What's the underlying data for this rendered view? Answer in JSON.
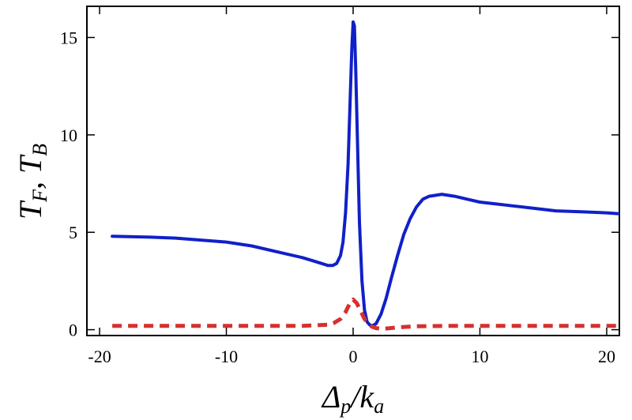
{
  "chart_data": {
    "type": "line",
    "title": "",
    "xlabel": "Δp/ka",
    "ylabel": "TF, TB",
    "xlim": [
      -21,
      21
    ],
    "ylim": [
      -0.3,
      16.6
    ],
    "grid": false,
    "legend": "none",
    "xticks": [
      {
        "value": -20,
        "label": "-20"
      },
      {
        "value": -10,
        "label": "-10"
      },
      {
        "value": 0,
        "label": "0"
      },
      {
        "value": 10,
        "label": "10"
      },
      {
        "value": 20,
        "label": "20"
      }
    ],
    "yticks": [
      {
        "value": 0,
        "label": "0"
      },
      {
        "value": 5,
        "label": "5"
      },
      {
        "value": 10,
        "label": "10"
      },
      {
        "value": 15,
        "label": "15"
      }
    ],
    "series": [
      {
        "style": "solid",
        "color": "#1020c8",
        "x": [
          -19,
          -16,
          -14,
          -12,
          -10,
          -8,
          -6,
          -4,
          -3,
          -2,
          -1.6,
          -1.3,
          -1,
          -0.8,
          -0.6,
          -0.4,
          -0.25,
          -0.1,
          0,
          0.1,
          0.2,
          0.35,
          0.5,
          0.7,
          0.9,
          1.1,
          1.3,
          1.5,
          1.8,
          2.2,
          2.6,
          3,
          3.5,
          4,
          4.5,
          5,
          5.5,
          6,
          7,
          8,
          9,
          10,
          12,
          14,
          16,
          18,
          20,
          21
        ],
        "y": [
          4.8,
          4.75,
          4.7,
          4.6,
          4.5,
          4.3,
          4.0,
          3.7,
          3.5,
          3.3,
          3.3,
          3.4,
          3.8,
          4.5,
          6.0,
          8.5,
          11.5,
          14.5,
          15.8,
          15.6,
          13.5,
          9.5,
          5.5,
          2.5,
          1.0,
          0.4,
          0.25,
          0.2,
          0.3,
          0.8,
          1.6,
          2.6,
          3.8,
          4.9,
          5.7,
          6.3,
          6.7,
          6.85,
          6.95,
          6.85,
          6.7,
          6.55,
          6.4,
          6.25,
          6.1,
          6.05,
          6.0,
          5.95
        ]
      },
      {
        "style": "dashed",
        "color": "#d63030",
        "x": [
          -19,
          -14,
          -10,
          -6,
          -4,
          -2,
          -1.5,
          -1,
          -0.6,
          -0.3,
          0,
          0.3,
          0.6,
          0.9,
          1.2,
          1.5,
          1.8,
          2.2,
          2.8,
          3.5,
          5,
          8,
          12,
          16,
          20,
          21
        ],
        "y": [
          0.2,
          0.2,
          0.2,
          0.2,
          0.2,
          0.25,
          0.35,
          0.55,
          0.9,
          1.3,
          1.55,
          1.35,
          0.95,
          0.55,
          0.3,
          0.15,
          0.08,
          0.05,
          0.07,
          0.12,
          0.18,
          0.2,
          0.2,
          0.2,
          0.2,
          0.2
        ]
      }
    ]
  }
}
